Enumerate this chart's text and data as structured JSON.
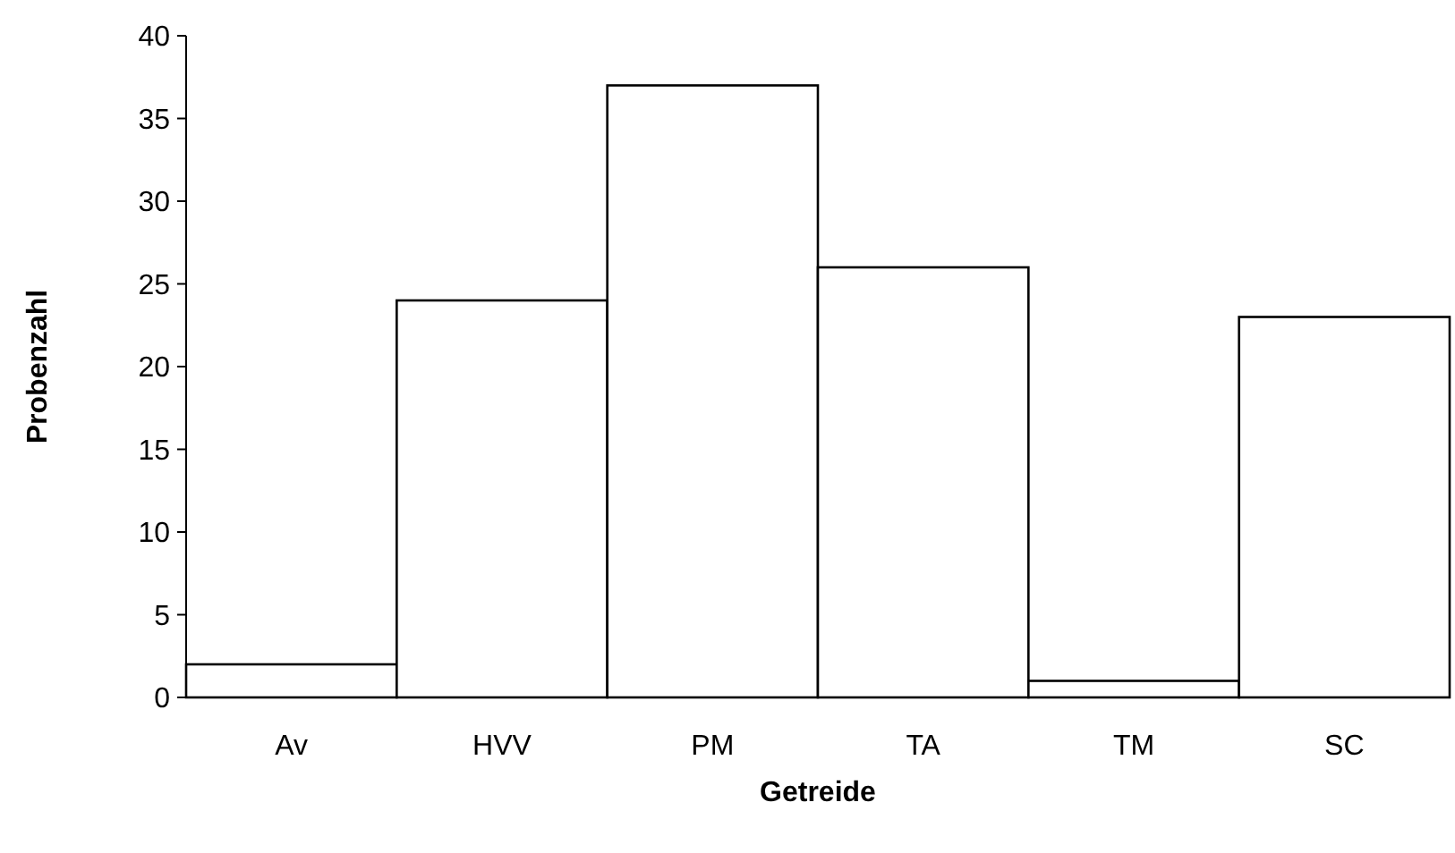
{
  "chart_data": {
    "type": "bar",
    "xlabel": "Getreide",
    "ylabel": "Probenzahl",
    "categories": [
      "Av",
      "HVV",
      "PM",
      "TA",
      "TM",
      "SC"
    ],
    "values": [
      2,
      24,
      37,
      26,
      1,
      23
    ],
    "color": "#ffffff",
    "ylim": [
      0,
      40
    ],
    "yticks": [
      0,
      5,
      10,
      15,
      20,
      25,
      30,
      35,
      40
    ],
    "grid": false
  }
}
